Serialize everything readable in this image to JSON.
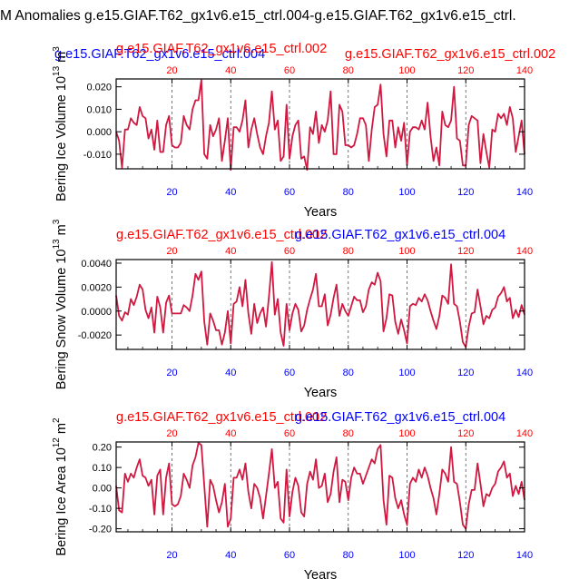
{
  "figure": {
    "title": "M Anomalies g.e15.GIAF.T62_gx1v6.e15_ctrl.004-g.e15.GIAF.T62_gx1v6.e15_ctrl."
  },
  "colors": {
    "series": "#d01840",
    "bottom_ticks": "#0000ff",
    "top_ticks": "#ff0000",
    "text": "#000000",
    "grid": "#555555"
  },
  "chart_data": [
    {
      "type": "line",
      "name": "ice-volume",
      "title_left": "g.e15.GIAF.T62_gx1v6.e15_ctrl.004",
      "title_center": "g.e15.GIAF.T62_gx1v6.e15_ctrl.002",
      "title_right": "g.e15.GIAF.T62_gx1v6.e15_ctrl.002",
      "title_left_color": "#0000ff",
      "title_center_color": "#ff0000",
      "title_right_color": "#ff0000",
      "xlabel": "Years",
      "ylabel": "Bering Ice Volume 10",
      "ylabel_exp": "13",
      "ylabel_unit": " m",
      "ylabel_unit_exp": "3",
      "xlim": [
        1,
        140
      ],
      "ylim": [
        -0.0165,
        0.0235
      ],
      "yticks": [
        -0.01,
        0,
        0.01,
        0.02
      ],
      "ytick_labels": [
        "-0.010",
        "0.000",
        "0.010",
        "0.020"
      ],
      "xticks": [
        20,
        40,
        60,
        80,
        100,
        120,
        140
      ],
      "xtick_labels": [
        "20",
        "40",
        "60",
        "80",
        "100",
        "120",
        "140"
      ],
      "grid_x": [
        20,
        40,
        60,
        80,
        100,
        120
      ],
      "x_start": 1,
      "values": [
        0.0,
        -0.004,
        -0.016,
        0.001,
        0.001,
        0.006,
        0.004,
        0.003,
        0.011,
        0.007,
        0.006,
        -0.003,
        0.001,
        -0.008,
        0.005,
        -0.009,
        -0.009,
        0.003,
        0.007,
        -0.006,
        -0.007,
        -0.007,
        -0.005,
        0.007,
        0.003,
        0.001,
        0.01,
        0.014,
        0.014,
        0.023,
        -0.01,
        -0.012,
        0.003,
        -0.002,
        0.001,
        0.006,
        -0.013,
        -0.004,
        0.006,
        -0.017,
        0.002,
        0.002,
        0.0,
        0.005,
        0.014,
        -0.007,
        0.001,
        0.006,
        -0.001,
        -0.007,
        -0.01,
        -0.002,
        0.004,
        0.018,
        0.001,
        0.005,
        -0.013,
        -0.011,
        0.012,
        -0.012,
        -0.002,
        0.003,
        0.005,
        -0.012,
        -0.011,
        -0.017,
        0.002,
        -0.001,
        0.009,
        -0.005,
        0.003,
        0.0,
        0.005,
        0.018,
        -0.01,
        -0.01,
        0.012,
        0.009,
        -0.006,
        -0.006,
        -0.007,
        -0.006,
        -0.001,
        0.006,
        0.006,
        0.003,
        -0.013,
        0.001,
        0.011,
        0.012,
        0.021,
        -0.001,
        -0.011,
        0.005,
        0.005,
        -0.007,
        0.002,
        -0.004,
        0.004,
        -0.015,
        0.0,
        0.002,
        0.002,
        0.001,
        0.005,
        0.001,
        0.013,
        -0.002,
        -0.013,
        -0.007,
        -0.015,
        0.009,
        0.003,
        0.002,
        0.005,
        0.02,
        -0.003,
        -0.004,
        -0.015,
        -0.015,
        0.003,
        0.007,
        0.006,
        0.005,
        -0.014,
        -0.001,
        -0.009,
        -0.016,
        0.001,
        0.0,
        0.008,
        0.006,
        0.008,
        0.003,
        0.011,
        0.006,
        -0.009,
        -0.002,
        0.005,
        -0.01
      ]
    },
    {
      "type": "line",
      "name": "snow-volume",
      "title_left": "g.e15.GIAF.T62_gx1v6.e15_ctrl.002",
      "title_center": "g.e15.GIAF.T62_gx1v6.e15_ctrl.004",
      "title_right": "",
      "title_left_color": "#ff0000",
      "title_center_color": "#0000ff",
      "title_right_color": "#ff0000",
      "xlabel": "Years",
      "ylabel": "Bering Snow Volume 10",
      "ylabel_exp": "13",
      "ylabel_unit": " m",
      "ylabel_unit_exp": "3",
      "xlim": [
        1,
        140
      ],
      "ylim": [
        -0.0032,
        0.0043
      ],
      "yticks": [
        -0.002,
        0,
        0.002,
        0.004
      ],
      "ytick_labels": [
        "-0.0020",
        "0.0000",
        "0.0020",
        "0.0040"
      ],
      "xticks": [
        20,
        40,
        60,
        80,
        100,
        120,
        140
      ],
      "xtick_labels": [
        "20",
        "40",
        "60",
        "80",
        "100",
        "120",
        "140"
      ],
      "grid_x": [
        20,
        40,
        60,
        80,
        100,
        120
      ],
      "x_start": 1,
      "values": [
        0.0013,
        -0.0004,
        -0.0008,
        -0.0001,
        -0.0003,
        0.001,
        0.0005,
        0.0012,
        0.0022,
        0.0018,
        0.0001,
        -0.0006,
        0.0003,
        -0.0018,
        0.0012,
        0.0003,
        -0.0018,
        0.0007,
        0.0013,
        -0.0002,
        -0.0002,
        -0.0002,
        -0.0002,
        0.0005,
        0.0003,
        0.0,
        0.0013,
        0.0031,
        0.0026,
        0.0033,
        -0.0009,
        -0.0028,
        -0.0002,
        -0.0008,
        -0.0016,
        -0.0016,
        -0.0028,
        -0.0018,
        0.0,
        -0.0027,
        0.0006,
        0.0008,
        0.002,
        0.0004,
        0.0026,
        -0.0002,
        -0.0019,
        0.0006,
        -0.001,
        -0.0002,
        0.0003,
        -0.0013,
        0.0012,
        0.0041,
        -0.0003,
        0.001,
        -0.0018,
        -0.0029,
        0.0006,
        -0.0016,
        -0.0002,
        0.0006,
        0.0001,
        -0.0017,
        -0.0012,
        0.0001,
        0.001,
        0.0018,
        0.0031,
        0.0004,
        0.0004,
        0.0014,
        -0.0012,
        -0.0003,
        0.0011,
        0.0022,
        -0.0004,
        0.0006,
        0.0,
        -0.0004,
        0.0004,
        0.0012,
        0.0009,
        0.0009,
        -0.0001,
        0.0004,
        0.0018,
        0.0024,
        0.0022,
        0.0032,
        0.0025,
        -0.0017,
        -0.0006,
        0.0014,
        0.0013,
        -0.0009,
        -0.0019,
        -0.0007,
        -0.0016,
        -0.0027,
        0.0004,
        0.0006,
        0.0005,
        0.0011,
        0.0008,
        0.0014,
        0.0009,
        0.0,
        -0.0008,
        -0.0015,
        -0.0004,
        0.0013,
        0.0011,
        0.0006,
        0.0039,
        0.0006,
        0.0004,
        -0.0009,
        -0.0026,
        -0.003,
        -0.0013,
        -0.0002,
        -0.0001,
        0.0018,
        0.0004,
        -0.0011,
        -0.0004,
        -0.0006,
        0.0001,
        0.0003,
        0.0012,
        0.0015,
        0.002,
        0.0008,
        0.0011,
        -0.0006,
        0.0001,
        -0.0005,
        0.0005,
        -0.0003
      ]
    },
    {
      "type": "line",
      "name": "ice-area",
      "title_left": "g.e15.GIAF.T62_gx1v6.e15_ctrl.002",
      "title_center": "g.e15.GIAF.T62_gx1v6.e15_ctrl.004",
      "title_right": "",
      "title_left_color": "#ff0000",
      "title_center_color": "#0000ff",
      "title_right_color": "#ff0000",
      "xlabel": "Years",
      "ylabel": "Bering Ice Area 10",
      "ylabel_exp": "12",
      "ylabel_unit": " m",
      "ylabel_unit_exp": "2",
      "xlim": [
        1,
        140
      ],
      "ylim": [
        -0.215,
        0.225
      ],
      "yticks": [
        -0.2,
        -0.1,
        0,
        0.1,
        0.2
      ],
      "ytick_labels": [
        "-0.20",
        "-0.10",
        "0.00",
        "0.10",
        "0.20"
      ],
      "xticks": [
        20,
        40,
        60,
        80,
        100,
        120,
        140
      ],
      "xtick_labels": [
        "20",
        "40",
        "60",
        "80",
        "100",
        "120",
        "140"
      ],
      "grid_x": [
        20,
        40,
        60,
        80,
        100,
        120
      ],
      "x_start": 1,
      "values": [
        0.01,
        -0.11,
        -0.12,
        0.07,
        0.03,
        0.07,
        0.05,
        0.1,
        0.14,
        0.06,
        0.05,
        0.01,
        0.04,
        -0.13,
        0.06,
        0.09,
        -0.13,
        0.05,
        0.12,
        -0.08,
        -0.09,
        -0.08,
        -0.04,
        0.07,
        0.04,
        0.0,
        0.11,
        0.15,
        0.22,
        0.21,
        0.01,
        -0.19,
        0.04,
        0.01,
        -0.06,
        -0.12,
        -0.07,
        0.02,
        -0.19,
        -0.15,
        0.05,
        0.05,
        0.09,
        0.04,
        0.12,
        -0.02,
        -0.1,
        0.02,
        0.0,
        -0.05,
        -0.15,
        -0.04,
        0.07,
        0.19,
        0.0,
        0.03,
        -0.15,
        -0.17,
        0.09,
        -0.14,
        -0.02,
        0.05,
        0.01,
        -0.12,
        -0.14,
        0.02,
        0.08,
        0.04,
        0.14,
        0.0,
        0.01,
        0.07,
        -0.07,
        -0.03,
        0.08,
        0.15,
        -0.07,
        0.04,
        0.03,
        -0.06,
        0.05,
        0.1,
        0.07,
        0.07,
        0.02,
        0.06,
        0.1,
        0.14,
        0.12,
        0.19,
        0.21,
        -0.06,
        -0.18,
        0.06,
        0.05,
        -0.05,
        -0.1,
        -0.06,
        -0.13,
        -0.18,
        0.02,
        0.05,
        0.03,
        0.09,
        0.05,
        0.1,
        0.06,
        0.0,
        -0.05,
        -0.13,
        -0.03,
        0.09,
        0.07,
        0.03,
        0.2,
        0.03,
        0.02,
        -0.07,
        -0.18,
        -0.2,
        -0.08,
        -0.01,
        -0.01,
        0.12,
        0.02,
        -0.09,
        -0.03,
        -0.04,
        0.0,
        0.02,
        0.08,
        0.1,
        0.13,
        0.05,
        0.07,
        -0.04,
        0.01,
        -0.03,
        0.03,
        -0.06
      ]
    }
  ]
}
